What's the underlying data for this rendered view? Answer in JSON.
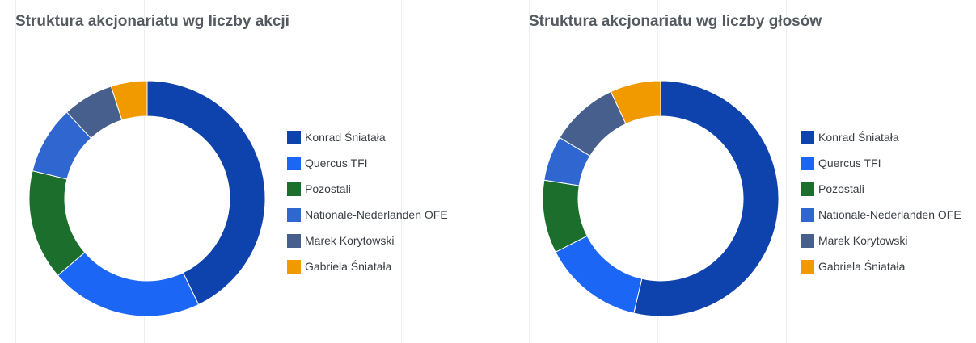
{
  "chart_data": [
    {
      "type": "pie",
      "variant": "donut",
      "title": "Struktura akcjonariatu wg liczby akcji",
      "labels": [
        "Konrad Śniatała",
        "Quercus TFI",
        "Pozostali",
        "Nationale-Nederlanden OFE",
        "Marek Korytowski",
        "Gabriela Śniatała"
      ],
      "values": [
        44.2,
        21.5,
        15.6,
        9.6,
        7.2,
        5.1
      ],
      "colors": [
        "#0e42ac",
        "#1b66f5",
        "#1b6e2c",
        "#2f66cf",
        "#465f8c",
        "#f19a00"
      ],
      "legend_position": "right"
    },
    {
      "type": "pie",
      "variant": "donut",
      "title": "Struktura akcjonariatu wg liczby głosów",
      "labels": [
        "Konrad Śniatała",
        "Quercus TFI",
        "Pozostali",
        "Nationale-Nederlanden OFE",
        "Marek Korytowski",
        "Gabriela Śniatała"
      ],
      "values": [
        55.8,
        14.4,
        10.4,
        6.4,
        9.8,
        7.2
      ],
      "colors": [
        "#0e42ac",
        "#1b66f5",
        "#1b6e2c",
        "#2f66cf",
        "#465f8c",
        "#f19a00"
      ],
      "legend_position": "right"
    }
  ]
}
